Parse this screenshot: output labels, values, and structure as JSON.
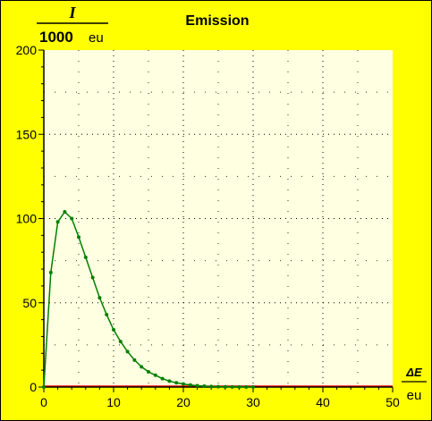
{
  "chart_data": {
    "type": "line",
    "title": "Emission",
    "ylabel": {
      "numerator": "I",
      "denominator_value": "1000",
      "denominator_unit": "eu"
    },
    "xlabel": {
      "numerator": "ΔE",
      "denominator": "eu"
    },
    "xlim": [
      0,
      50
    ],
    "ylim": [
      0,
      200
    ],
    "xticks": [
      "0",
      "10",
      "20",
      "30",
      "40",
      "50"
    ],
    "yticks": [
      "0",
      "50",
      "100",
      "150",
      "200"
    ],
    "grid": true,
    "colors": {
      "background": "#ffff00",
      "plot_area": "#ffffe1",
      "series": "#008000",
      "baseline": "#ff0000"
    },
    "series": [
      {
        "x": [
          0,
          1,
          2,
          3,
          4,
          5,
          6,
          7,
          8,
          9,
          10,
          11,
          12,
          13,
          14,
          15,
          16,
          17,
          18,
          19,
          20,
          21,
          22,
          23,
          24,
          25,
          26,
          27,
          28,
          29,
          30
        ],
        "y": [
          0,
          68,
          98,
          104,
          100,
          89,
          77,
          65,
          53,
          43,
          34,
          27,
          21,
          16,
          12,
          9,
          7,
          5,
          3.5,
          2.5,
          1.8,
          1.2,
          0.8,
          0.5,
          0.3,
          0.2,
          0.1,
          0.08,
          0.05,
          0.03,
          0.02
        ]
      }
    ]
  }
}
